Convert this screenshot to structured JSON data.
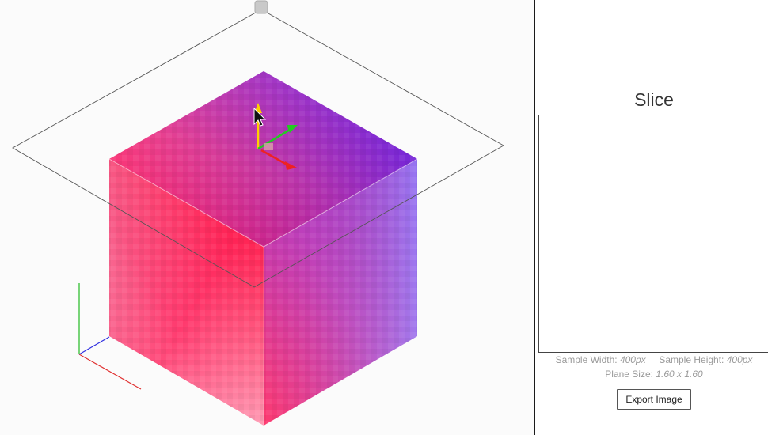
{
  "viewport": {
    "cube_colors": {
      "top_left_edge": "#ee3d7d",
      "top_right_edge": "#7a3cf0",
      "top_front": "#ff0030",
      "top_far": "#9a5cf0",
      "left_bottom": "#ffffff",
      "right_bottom": "#a58cf5",
      "bottom_corner": "#ff3b6f",
      "right_edge": "#5a1de8",
      "left_edge": "#f07aa0"
    },
    "axis_colors": {
      "x": "#e03030",
      "y": "#22bb22",
      "z": "#3030e0"
    },
    "gizmo_colors": {
      "up": "#ffd000",
      "right": "#22cc22",
      "forward": "#ee2222"
    }
  },
  "panel": {
    "title": "Slice",
    "sample_width_label": "Sample Width:",
    "sample_width_value": "400px",
    "sample_height_label": "Sample Height:",
    "sample_height_value": "400px",
    "plane_size_label": "Plane Size:",
    "plane_size_value": "1.60 x 1.60",
    "export_label": "Export Image"
  }
}
